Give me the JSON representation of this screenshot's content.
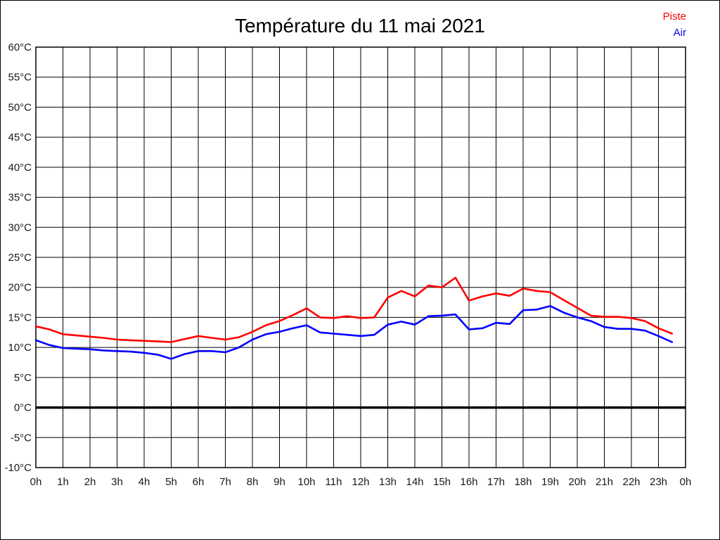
{
  "title": "Température du 11 mai 2021",
  "legend": {
    "items": [
      {
        "label": "Piste",
        "color": "#ff0000"
      },
      {
        "label": "Air",
        "color": "#0000ff"
      }
    ],
    "position": "top-right"
  },
  "chart_data": {
    "type": "line",
    "title": "Température du 11 mai 2021",
    "xlabel": "",
    "ylabel": "",
    "xlim": [
      0,
      24
    ],
    "ylim": [
      -10,
      60
    ],
    "y_step": 5,
    "grid": true,
    "grid_color": "#000000",
    "zero_line": {
      "value": 0,
      "bold": true,
      "color": "#000000"
    },
    "x_tick_labels": [
      "0h",
      "1h",
      "2h",
      "3h",
      "4h",
      "5h",
      "6h",
      "7h",
      "8h",
      "9h",
      "10h",
      "11h",
      "12h",
      "13h",
      "14h",
      "15h",
      "16h",
      "17h",
      "18h",
      "19h",
      "20h",
      "21h",
      "22h",
      "23h",
      "0h"
    ],
    "y_tick_labels": [
      "60°C",
      "55°C",
      "50°C",
      "45°C",
      "40°C",
      "35°C",
      "30°C",
      "25°C",
      "20°C",
      "15°C",
      "10°C",
      "5°C",
      "0°C",
      "-5°C",
      "-10°C"
    ],
    "x": [
      0,
      0.5,
      1,
      1.5,
      2,
      2.5,
      3,
      3.5,
      4,
      4.5,
      5,
      5.5,
      6,
      6.5,
      7,
      7.5,
      8,
      8.5,
      9,
      9.5,
      10,
      10.5,
      11,
      11.5,
      12,
      12.5,
      13,
      13.5,
      14,
      14.5,
      15,
      15.5,
      16,
      16.5,
      17,
      17.5,
      18,
      18.5,
      19,
      19.5,
      20,
      20.5,
      21,
      21.5,
      22,
      22.5,
      23,
      23.5
    ],
    "series": [
      {
        "name": "Piste",
        "color": "#ff0000",
        "values": [
          13.5,
          13.0,
          12.2,
          12.0,
          11.8,
          11.6,
          11.3,
          11.2,
          11.1,
          11.0,
          10.9,
          11.4,
          11.9,
          11.6,
          11.3,
          11.7,
          12.6,
          13.7,
          14.4,
          15.4,
          16.5,
          15.0,
          14.9,
          15.2,
          14.9,
          15.0,
          18.3,
          19.4,
          18.5,
          20.3,
          20.0,
          21.6,
          17.8,
          18.5,
          19.0,
          18.6,
          19.8,
          19.4,
          19.2,
          17.9,
          16.6,
          15.3,
          15.1,
          15.1,
          14.9,
          14.4,
          13.2,
          12.3
        ]
      },
      {
        "name": "Air",
        "color": "#0000ff",
        "values": [
          11.2,
          10.4,
          9.9,
          9.8,
          9.7,
          9.5,
          9.4,
          9.3,
          9.1,
          8.8,
          8.1,
          8.9,
          9.4,
          9.4,
          9.2,
          10.0,
          11.3,
          12.2,
          12.6,
          13.2,
          13.7,
          12.5,
          12.3,
          12.1,
          11.9,
          12.1,
          13.8,
          14.3,
          13.8,
          15.2,
          15.3,
          15.5,
          13.0,
          13.2,
          14.1,
          13.9,
          16.2,
          16.3,
          16.9,
          15.8,
          15.0,
          14.4,
          13.4,
          13.1,
          13.1,
          12.8,
          11.9,
          10.9
        ]
      }
    ],
    "legend_position": "top-right"
  }
}
